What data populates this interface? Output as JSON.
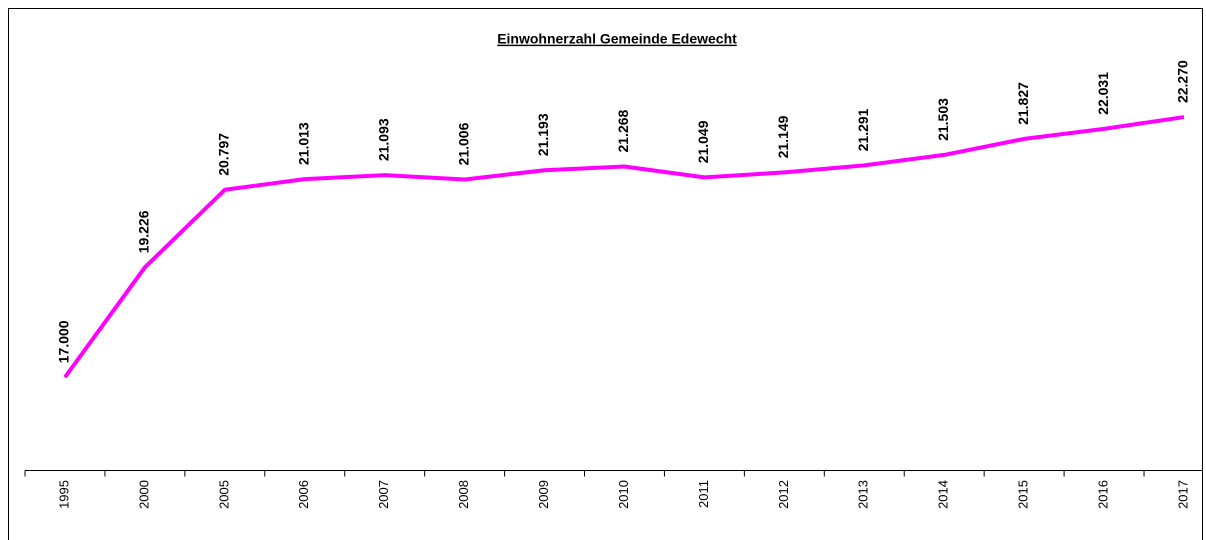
{
  "chart_data": {
    "type": "line",
    "title": "Einwohnerzahl Gemeinde Edewecht",
    "categories": [
      "1995",
      "2000",
      "2005",
      "2006",
      "2007",
      "2008",
      "2009",
      "2010",
      "2011",
      "2012",
      "2013",
      "2014",
      "2015",
      "2016",
      "2017"
    ],
    "values": [
      17000,
      19226,
      20797,
      21013,
      21093,
      21006,
      21193,
      21268,
      21049,
      21149,
      21291,
      21503,
      21827,
      22031,
      22270
    ],
    "value_labels": [
      "17.000",
      "19.226",
      "20.797",
      "21.013",
      "21.093",
      "21.006",
      "21.193",
      "21.268",
      "21.049",
      "21.149",
      "21.291",
      "21.503",
      "21.827",
      "22.031",
      "22.270"
    ],
    "color": "#ff00ff",
    "ylim": [
      15000,
      23000
    ]
  }
}
